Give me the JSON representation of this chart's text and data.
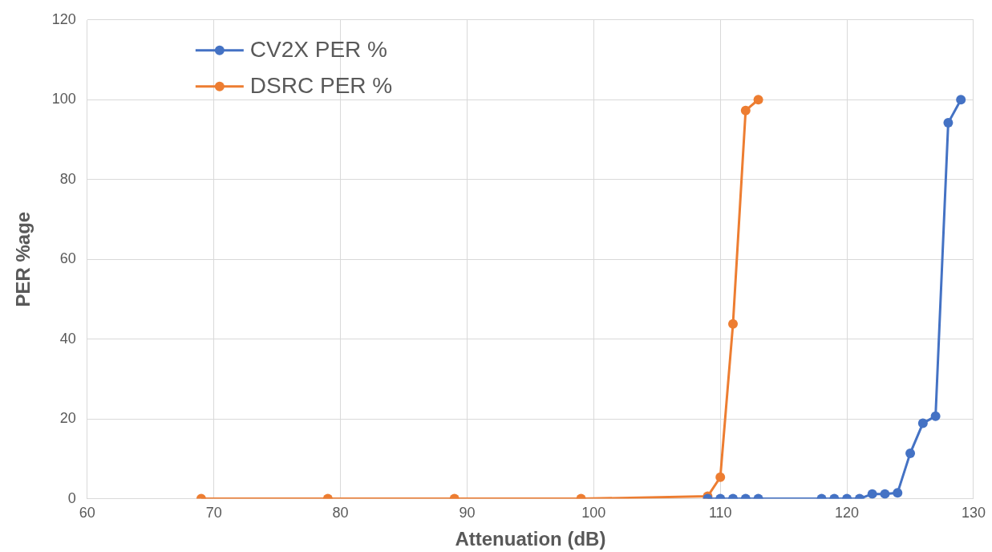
{
  "chart_data": {
    "type": "line",
    "xlabel": "Attenuation (dB)",
    "ylabel": "PER %age",
    "series": [
      {
        "name": "CV2X PER %",
        "color": "#4472c4",
        "x": [
          109,
          110,
          111,
          112,
          113,
          118,
          119,
          120,
          121,
          122,
          123,
          124,
          125,
          126,
          127,
          128,
          129
        ],
        "values": [
          0,
          0,
          0,
          0,
          0,
          0,
          0,
          0,
          0,
          1.2,
          1.2,
          1.5,
          11.4,
          18.9,
          20.7,
          94.2,
          100
        ]
      },
      {
        "name": "DSRC PER %",
        "color": "#ed7d31",
        "x": [
          69,
          79,
          89,
          99,
          109,
          110,
          111,
          112,
          113
        ],
        "values": [
          0,
          0,
          0,
          0,
          0.6,
          5.4,
          43.8,
          97.3,
          100
        ]
      }
    ],
    "xlim": [
      60,
      130
    ],
    "xticks": [
      60,
      70,
      80,
      90,
      100,
      110,
      120,
      130
    ],
    "ylim": [
      0,
      120
    ],
    "yticks": [
      0,
      20,
      40,
      60,
      80,
      100,
      120
    ],
    "grid": true,
    "legend": "top left",
    "marker": "circle",
    "line_style": "solid"
  }
}
